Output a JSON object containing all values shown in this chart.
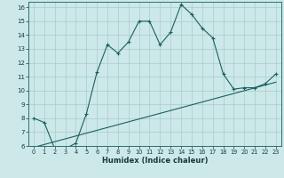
{
  "title": "",
  "xlabel": "Humidex (Indice chaleur)",
  "bg_color": "#cce8e8",
  "grid_color": "#aacccc",
  "line_color": "#1a6060",
  "xlim": [
    -0.5,
    23.5
  ],
  "ylim": [
    6,
    16.4
  ],
  "yticks": [
    6,
    7,
    8,
    9,
    10,
    11,
    12,
    13,
    14,
    15,
    16
  ],
  "xticks": [
    0,
    1,
    2,
    3,
    4,
    5,
    6,
    7,
    8,
    9,
    10,
    11,
    12,
    13,
    14,
    15,
    16,
    17,
    18,
    19,
    20,
    21,
    22,
    23
  ],
  "curve1_x": [
    0,
    1,
    2,
    3,
    4,
    5,
    6,
    7,
    8,
    9,
    10,
    11,
    12,
    13,
    14,
    15,
    16,
    17,
    18,
    19,
    20,
    21,
    22,
    23
  ],
  "curve1_y": [
    8.0,
    7.7,
    5.8,
    5.8,
    6.2,
    8.3,
    11.3,
    13.3,
    12.7,
    13.5,
    15.0,
    15.0,
    13.3,
    14.2,
    16.2,
    15.5,
    14.5,
    13.8,
    11.2,
    10.1,
    10.2,
    10.2,
    10.5,
    11.2
  ],
  "curve2_x": [
    0,
    23
  ],
  "curve2_y": [
    5.9,
    10.6
  ]
}
